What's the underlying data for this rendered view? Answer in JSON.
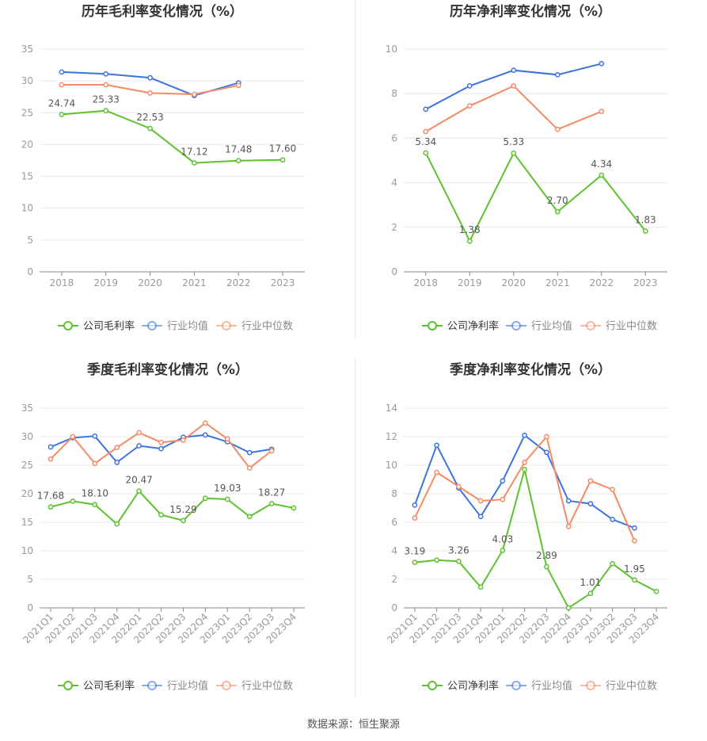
{
  "colors": {
    "company": "#5cc22e",
    "industry_avg": "#3b74e0",
    "industry_median": "#f58a64",
    "grid": "#e9e9ee",
    "axis_text": "#999999",
    "title": "#333333"
  },
  "legend_labels": {
    "gross": [
      "公司毛利率",
      "行业均值",
      "行业中位数"
    ],
    "net": [
      "公司净利率",
      "行业均值",
      "行业中位数"
    ]
  },
  "source": "数据来源：恒生聚源",
  "chart_data": [
    {
      "id": "annual-gross",
      "type": "line",
      "title": "历年毛利率变化情况（%）",
      "categories": [
        "2018",
        "2019",
        "2020",
        "2021",
        "2022",
        "2023"
      ],
      "ylim": [
        0,
        35
      ],
      "yticks": [
        0,
        5,
        10,
        15,
        20,
        25,
        30,
        35
      ],
      "grid": true,
      "legend": "bottom",
      "series": [
        {
          "name": "公司毛利率",
          "role": "company",
          "values": [
            24.74,
            25.33,
            22.53,
            17.12,
            17.48,
            17.6
          ],
          "labels": [
            "24.74",
            "25.33",
            "22.53",
            "17.12",
            "17.48",
            "17.60"
          ]
        },
        {
          "name": "行业均值",
          "role": "industry_avg",
          "values": [
            31.4,
            31.1,
            30.5,
            27.7,
            29.7,
            null
          ]
        },
        {
          "name": "行业中位数",
          "role": "industry_median",
          "values": [
            29.4,
            29.4,
            28.1,
            27.9,
            29.3,
            null
          ]
        }
      ]
    },
    {
      "id": "annual-net",
      "type": "line",
      "title": "历年净利率变化情况（%）",
      "categories": [
        "2018",
        "2019",
        "2020",
        "2021",
        "2022",
        "2023"
      ],
      "ylim": [
        0,
        10
      ],
      "yticks": [
        0,
        2,
        4,
        6,
        8,
        10
      ],
      "grid": true,
      "legend": "bottom",
      "series": [
        {
          "name": "公司净利率",
          "role": "company",
          "values": [
            5.34,
            1.38,
            5.33,
            2.7,
            4.34,
            1.83
          ],
          "labels": [
            "5.34",
            "1.38",
            "5.33",
            "2.70",
            "4.34",
            "1.83"
          ]
        },
        {
          "name": "行业均值",
          "role": "industry_avg",
          "values": [
            7.3,
            8.35,
            9.05,
            8.85,
            9.35,
            null
          ]
        },
        {
          "name": "行业中位数",
          "role": "industry_median",
          "values": [
            6.3,
            7.45,
            8.35,
            6.4,
            7.2,
            null
          ]
        }
      ]
    },
    {
      "id": "quarterly-gross",
      "type": "line",
      "title": "季度毛利率变化情况（%）",
      "categories": [
        "2021Q1",
        "2021Q2",
        "2021Q3",
        "2021Q4",
        "2022Q1",
        "2022Q2",
        "2022Q3",
        "2022Q4",
        "2023Q1",
        "2023Q2",
        "2023Q3",
        "2023Q4"
      ],
      "ylim": [
        0,
        35
      ],
      "yticks": [
        0,
        5,
        10,
        15,
        20,
        25,
        30,
        35
      ],
      "grid": true,
      "legend": "bottom",
      "series": [
        {
          "name": "公司毛利率",
          "role": "company",
          "values": [
            17.68,
            18.7,
            18.1,
            14.7,
            20.47,
            16.3,
            15.29,
            19.2,
            19.03,
            16.0,
            18.27,
            17.5
          ],
          "labels": [
            "17.68",
            "",
            "18.10",
            "",
            "20.47",
            "",
            "15.29",
            "",
            "19.03",
            "",
            "18.27",
            ""
          ]
        },
        {
          "name": "行业均值",
          "role": "industry_avg",
          "values": [
            28.2,
            29.8,
            30.1,
            25.5,
            28.4,
            27.9,
            29.9,
            30.3,
            29.1,
            27.2,
            27.8,
            null
          ]
        },
        {
          "name": "行业中位数",
          "role": "industry_median",
          "values": [
            26.1,
            30.0,
            25.3,
            28.1,
            30.7,
            29.0,
            29.4,
            32.4,
            29.6,
            24.5,
            27.5,
            null
          ]
        }
      ]
    },
    {
      "id": "quarterly-net",
      "type": "line",
      "title": "季度净利率变化情况（%）",
      "categories": [
        "2021Q1",
        "2021Q2",
        "2021Q3",
        "2021Q4",
        "2022Q1",
        "2022Q2",
        "2022Q3",
        "2022Q4",
        "2023Q1",
        "2023Q2",
        "2023Q3",
        "2023Q4"
      ],
      "ylim": [
        0,
        14
      ],
      "yticks": [
        0,
        2,
        4,
        6,
        8,
        10,
        12,
        14
      ],
      "grid": true,
      "legend": "bottom",
      "series": [
        {
          "name": "公司净利率",
          "role": "company",
          "values": [
            3.19,
            3.35,
            3.26,
            1.45,
            4.03,
            9.7,
            2.89,
            0.0,
            1.01,
            3.1,
            1.95,
            1.15
          ],
          "labels": [
            "3.19",
            "",
            "3.26",
            "",
            "4.03",
            "",
            "2.89",
            "",
            "1.01",
            "",
            "1.95",
            ""
          ]
        },
        {
          "name": "行业均值",
          "role": "industry_avg",
          "values": [
            7.2,
            11.4,
            8.4,
            6.4,
            8.9,
            12.1,
            10.9,
            7.5,
            7.3,
            6.2,
            5.6,
            null
          ]
        },
        {
          "name": "行业中位数",
          "role": "industry_median",
          "values": [
            6.3,
            9.5,
            8.5,
            7.5,
            7.6,
            10.2,
            12.0,
            5.7,
            8.9,
            8.3,
            4.7,
            null
          ]
        }
      ]
    }
  ]
}
